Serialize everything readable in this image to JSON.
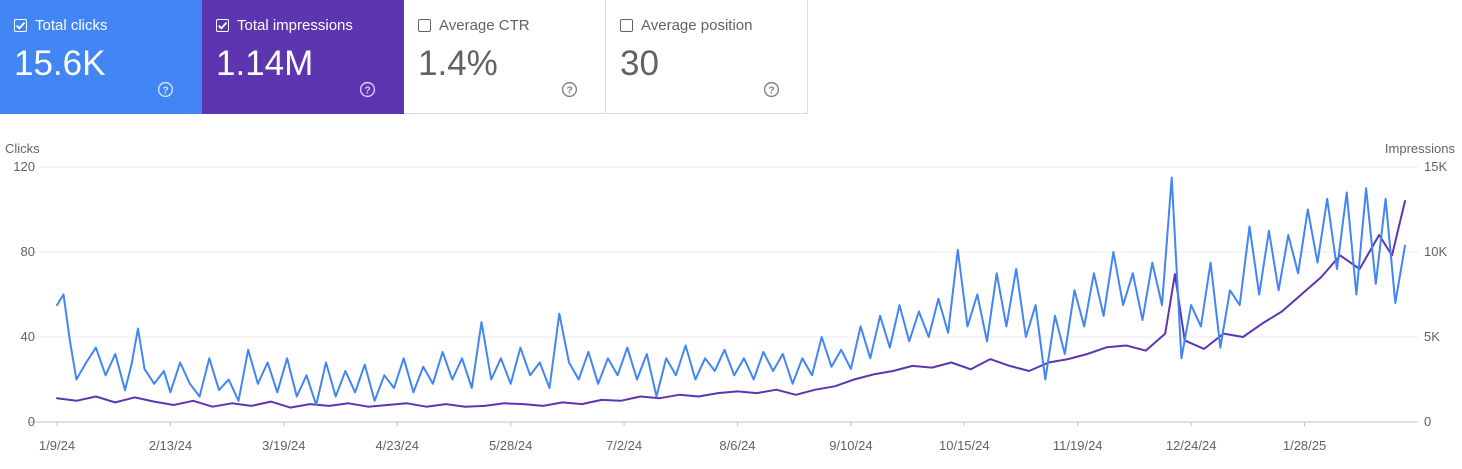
{
  "metrics": {
    "clicks": {
      "label": "Total clicks",
      "value": "15.6K",
      "checked": true,
      "color": "#4285f4"
    },
    "impressions": {
      "label": "Total impressions",
      "value": "1.14M",
      "checked": true,
      "color": "#5e35b1"
    },
    "ctr": {
      "label": "Average CTR",
      "value": "1.4%",
      "checked": false
    },
    "position": {
      "label": "Average position",
      "value": "30",
      "checked": false
    },
    "help_icon": "help-circle-icon",
    "check_icon": "check-icon"
  },
  "chart_data": {
    "type": "line",
    "left_axis_label": "Clicks",
    "right_axis_label": "Impressions",
    "left_ticks": [
      "0",
      "40",
      "80",
      "120"
    ],
    "right_ticks": [
      "0",
      "5K",
      "10K",
      "15K"
    ],
    "ylim_left": [
      0,
      120
    ],
    "ylim_right": [
      0,
      15000
    ],
    "x_range": [
      "2024-01-09",
      "2025-02-28"
    ],
    "x_ticks": [
      {
        "date": "2024-01-09",
        "label": "1/9/24"
      },
      {
        "date": "2024-02-13",
        "label": "2/13/24"
      },
      {
        "date": "2024-03-19",
        "label": "3/19/24"
      },
      {
        "date": "2024-04-23",
        "label": "4/23/24"
      },
      {
        "date": "2024-05-28",
        "label": "5/28/24"
      },
      {
        "date": "2024-07-02",
        "label": "7/2/24"
      },
      {
        "date": "2024-08-06",
        "label": "8/6/24"
      },
      {
        "date": "2024-09-10",
        "label": "9/10/24"
      },
      {
        "date": "2024-10-15",
        "label": "10/15/24"
      },
      {
        "date": "2024-11-19",
        "label": "11/19/24"
      },
      {
        "date": "2024-12-24",
        "label": "12/24/24"
      },
      {
        "date": "2025-01-28",
        "label": "1/28/25"
      }
    ],
    "grid": true,
    "series": [
      {
        "name": "Total clicks",
        "axis": "left",
        "color": "#4285f4",
        "points": [
          [
            "2024-01-09",
            55
          ],
          [
            "2024-01-11",
            60
          ],
          [
            "2024-01-13",
            38
          ],
          [
            "2024-01-15",
            20
          ],
          [
            "2024-01-18",
            28
          ],
          [
            "2024-01-21",
            35
          ],
          [
            "2024-01-24",
            22
          ],
          [
            "2024-01-27",
            32
          ],
          [
            "2024-01-30",
            15
          ],
          [
            "2024-02-01",
            27
          ],
          [
            "2024-02-03",
            44
          ],
          [
            "2024-02-05",
            25
          ],
          [
            "2024-02-08",
            18
          ],
          [
            "2024-02-11",
            24
          ],
          [
            "2024-02-13",
            14
          ],
          [
            "2024-02-16",
            28
          ],
          [
            "2024-02-19",
            18
          ],
          [
            "2024-02-22",
            12
          ],
          [
            "2024-02-25",
            30
          ],
          [
            "2024-02-28",
            15
          ],
          [
            "2024-03-02",
            20
          ],
          [
            "2024-03-05",
            10
          ],
          [
            "2024-03-08",
            34
          ],
          [
            "2024-03-11",
            18
          ],
          [
            "2024-03-14",
            28
          ],
          [
            "2024-03-17",
            14
          ],
          [
            "2024-03-20",
            30
          ],
          [
            "2024-03-23",
            12
          ],
          [
            "2024-03-26",
            22
          ],
          [
            "2024-03-29",
            8
          ],
          [
            "2024-04-01",
            28
          ],
          [
            "2024-04-04",
            12
          ],
          [
            "2024-04-07",
            24
          ],
          [
            "2024-04-10",
            14
          ],
          [
            "2024-04-13",
            27
          ],
          [
            "2024-04-16",
            10
          ],
          [
            "2024-04-19",
            22
          ],
          [
            "2024-04-22",
            16
          ],
          [
            "2024-04-25",
            30
          ],
          [
            "2024-04-28",
            14
          ],
          [
            "2024-05-01",
            26
          ],
          [
            "2024-05-04",
            18
          ],
          [
            "2024-05-07",
            33
          ],
          [
            "2024-05-10",
            20
          ],
          [
            "2024-05-13",
            30
          ],
          [
            "2024-05-16",
            16
          ],
          [
            "2024-05-19",
            47
          ],
          [
            "2024-05-22",
            20
          ],
          [
            "2024-05-25",
            30
          ],
          [
            "2024-05-28",
            18
          ],
          [
            "2024-05-31",
            35
          ],
          [
            "2024-06-03",
            22
          ],
          [
            "2024-06-06",
            28
          ],
          [
            "2024-06-09",
            16
          ],
          [
            "2024-06-12",
            51
          ],
          [
            "2024-06-15",
            28
          ],
          [
            "2024-06-18",
            20
          ],
          [
            "2024-06-21",
            33
          ],
          [
            "2024-06-24",
            18
          ],
          [
            "2024-06-27",
            30
          ],
          [
            "2024-06-30",
            22
          ],
          [
            "2024-07-03",
            35
          ],
          [
            "2024-07-06",
            20
          ],
          [
            "2024-07-09",
            32
          ],
          [
            "2024-07-12",
            12
          ],
          [
            "2024-07-15",
            30
          ],
          [
            "2024-07-18",
            22
          ],
          [
            "2024-07-21",
            36
          ],
          [
            "2024-07-24",
            20
          ],
          [
            "2024-07-27",
            30
          ],
          [
            "2024-07-30",
            24
          ],
          [
            "2024-08-02",
            34
          ],
          [
            "2024-08-05",
            22
          ],
          [
            "2024-08-08",
            30
          ],
          [
            "2024-08-11",
            20
          ],
          [
            "2024-08-14",
            33
          ],
          [
            "2024-08-17",
            24
          ],
          [
            "2024-08-20",
            32
          ],
          [
            "2024-08-23",
            18
          ],
          [
            "2024-08-26",
            30
          ],
          [
            "2024-08-29",
            22
          ],
          [
            "2024-09-01",
            40
          ],
          [
            "2024-09-04",
            26
          ],
          [
            "2024-09-07",
            34
          ],
          [
            "2024-09-10",
            25
          ],
          [
            "2024-09-13",
            45
          ],
          [
            "2024-09-16",
            30
          ],
          [
            "2024-09-19",
            50
          ],
          [
            "2024-09-22",
            35
          ],
          [
            "2024-09-25",
            55
          ],
          [
            "2024-09-28",
            38
          ],
          [
            "2024-10-01",
            52
          ],
          [
            "2024-10-04",
            40
          ],
          [
            "2024-10-07",
            58
          ],
          [
            "2024-10-10",
            42
          ],
          [
            "2024-10-13",
            81
          ],
          [
            "2024-10-16",
            45
          ],
          [
            "2024-10-19",
            60
          ],
          [
            "2024-10-22",
            38
          ],
          [
            "2024-10-25",
            70
          ],
          [
            "2024-10-28",
            45
          ],
          [
            "2024-10-31",
            72
          ],
          [
            "2024-11-03",
            40
          ],
          [
            "2024-11-06",
            55
          ],
          [
            "2024-11-09",
            20
          ],
          [
            "2024-11-12",
            50
          ],
          [
            "2024-11-15",
            32
          ],
          [
            "2024-11-18",
            62
          ],
          [
            "2024-11-21",
            45
          ],
          [
            "2024-11-24",
            70
          ],
          [
            "2024-11-27",
            50
          ],
          [
            "2024-11-30",
            80
          ],
          [
            "2024-12-03",
            55
          ],
          [
            "2024-12-06",
            70
          ],
          [
            "2024-12-09",
            48
          ],
          [
            "2024-12-12",
            75
          ],
          [
            "2024-12-15",
            55
          ],
          [
            "2024-12-18",
            115
          ],
          [
            "2024-12-21",
            30
          ],
          [
            "2024-12-24",
            55
          ],
          [
            "2024-12-27",
            45
          ],
          [
            "2024-12-30",
            75
          ],
          [
            "2025-01-02",
            35
          ],
          [
            "2025-01-05",
            62
          ],
          [
            "2025-01-08",
            55
          ],
          [
            "2025-01-11",
            92
          ],
          [
            "2025-01-14",
            60
          ],
          [
            "2025-01-17",
            90
          ],
          [
            "2025-01-20",
            62
          ],
          [
            "2025-01-23",
            88
          ],
          [
            "2025-01-26",
            70
          ],
          [
            "2025-01-29",
            100
          ],
          [
            "2025-02-01",
            75
          ],
          [
            "2025-02-04",
            105
          ],
          [
            "2025-02-07",
            72
          ],
          [
            "2025-02-10",
            108
          ],
          [
            "2025-02-13",
            60
          ],
          [
            "2025-02-16",
            110
          ],
          [
            "2025-02-19",
            65
          ],
          [
            "2025-02-22",
            105
          ],
          [
            "2025-02-25",
            56
          ],
          [
            "2025-02-28",
            83
          ]
        ]
      },
      {
        "name": "Total impressions",
        "axis": "right",
        "color": "#5e35b1",
        "points": [
          [
            "2024-01-09",
            1400
          ],
          [
            "2024-01-15",
            1250
          ],
          [
            "2024-01-21",
            1500
          ],
          [
            "2024-01-27",
            1150
          ],
          [
            "2024-02-02",
            1450
          ],
          [
            "2024-02-08",
            1200
          ],
          [
            "2024-02-14",
            1000
          ],
          [
            "2024-02-20",
            1250
          ],
          [
            "2024-02-26",
            900
          ],
          [
            "2024-03-03",
            1100
          ],
          [
            "2024-03-09",
            950
          ],
          [
            "2024-03-15",
            1200
          ],
          [
            "2024-03-21",
            850
          ],
          [
            "2024-03-27",
            1050
          ],
          [
            "2024-04-02",
            950
          ],
          [
            "2024-04-08",
            1100
          ],
          [
            "2024-04-14",
            900
          ],
          [
            "2024-04-20",
            1000
          ],
          [
            "2024-04-26",
            1100
          ],
          [
            "2024-05-02",
            900
          ],
          [
            "2024-05-08",
            1050
          ],
          [
            "2024-05-14",
            900
          ],
          [
            "2024-05-20",
            950
          ],
          [
            "2024-05-26",
            1100
          ],
          [
            "2024-06-01",
            1050
          ],
          [
            "2024-06-07",
            950
          ],
          [
            "2024-06-13",
            1150
          ],
          [
            "2024-06-19",
            1050
          ],
          [
            "2024-06-25",
            1300
          ],
          [
            "2024-07-01",
            1250
          ],
          [
            "2024-07-07",
            1500
          ],
          [
            "2024-07-13",
            1400
          ],
          [
            "2024-07-19",
            1600
          ],
          [
            "2024-07-25",
            1500
          ],
          [
            "2024-07-31",
            1700
          ],
          [
            "2024-08-06",
            1800
          ],
          [
            "2024-08-12",
            1700
          ],
          [
            "2024-08-18",
            1900
          ],
          [
            "2024-08-24",
            1600
          ],
          [
            "2024-08-30",
            1900
          ],
          [
            "2024-09-05",
            2100
          ],
          [
            "2024-09-11",
            2500
          ],
          [
            "2024-09-17",
            2800
          ],
          [
            "2024-09-23",
            3000
          ],
          [
            "2024-09-29",
            3300
          ],
          [
            "2024-10-05",
            3200
          ],
          [
            "2024-10-11",
            3500
          ],
          [
            "2024-10-17",
            3100
          ],
          [
            "2024-10-23",
            3700
          ],
          [
            "2024-10-29",
            3300
          ],
          [
            "2024-11-04",
            3000
          ],
          [
            "2024-11-10",
            3500
          ],
          [
            "2024-11-16",
            3700
          ],
          [
            "2024-11-22",
            4000
          ],
          [
            "2024-11-28",
            4400
          ],
          [
            "2024-12-04",
            4500
          ],
          [
            "2024-12-10",
            4200
          ],
          [
            "2024-12-16",
            5200
          ],
          [
            "2024-12-19",
            8700
          ],
          [
            "2024-12-22",
            4800
          ],
          [
            "2024-12-28",
            4300
          ],
          [
            "2025-01-03",
            5200
          ],
          [
            "2025-01-09",
            5000
          ],
          [
            "2025-01-15",
            5800
          ],
          [
            "2025-01-21",
            6500
          ],
          [
            "2025-01-27",
            7500
          ],
          [
            "2025-02-02",
            8500
          ],
          [
            "2025-02-08",
            9800
          ],
          [
            "2025-02-14",
            9000
          ],
          [
            "2025-02-20",
            11000
          ],
          [
            "2025-02-24",
            9800
          ],
          [
            "2025-02-28",
            13000
          ]
        ]
      }
    ]
  }
}
